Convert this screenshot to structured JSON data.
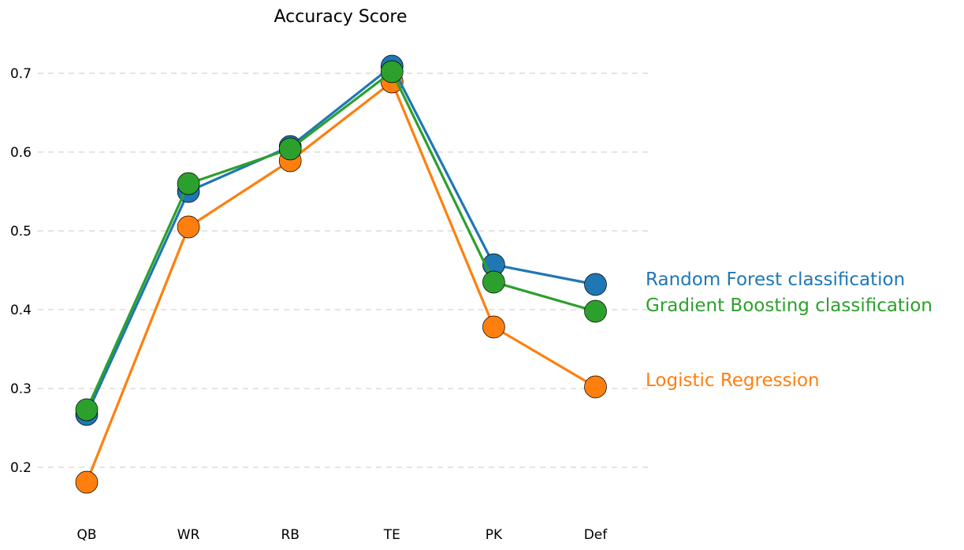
{
  "chart_data": {
    "type": "line",
    "title": "Accuracy Score",
    "xlabel": "",
    "ylabel": "",
    "categories": [
      "QB",
      "WR",
      "RB",
      "TE",
      "PK",
      "Def"
    ],
    "ylim": [
      0.15,
      0.75
    ],
    "yticks": [
      "0.2",
      "0.3",
      "0.4",
      "0.5",
      "0.6",
      "0.7"
    ],
    "grid": "horizontal dashed",
    "legend": "right, labels next to series ends",
    "series": [
      {
        "name": "Logistic Regression",
        "color": "#ff7f0e",
        "values": [
          0.181,
          0.505,
          0.589,
          0.689,
          0.378,
          0.302
        ]
      },
      {
        "name": "Random Forest classification",
        "color": "#1f77b4",
        "values": [
          0.267,
          0.55,
          0.607,
          0.709,
          0.457,
          0.432
        ]
      },
      {
        "name": "Gradient Boosting classification",
        "color": "#2ca02c",
        "values": [
          0.273,
          0.56,
          0.604,
          0.702,
          0.435,
          0.398
        ]
      }
    ]
  }
}
